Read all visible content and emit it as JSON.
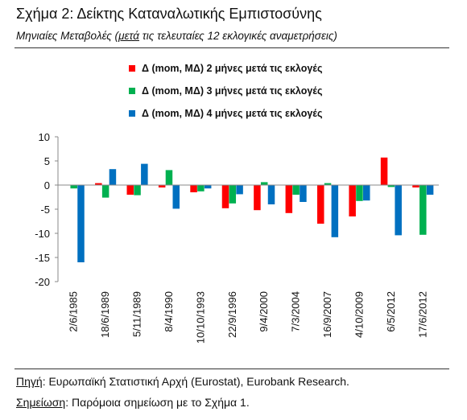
{
  "header": {
    "title": "Σχήμα 2: Δείκτης Καταναλωτικής Εμπιστοσύνης",
    "subtitle_prefix": "Μηνιαίες Μεταβολές (",
    "subtitle_emph": "μετά",
    "subtitle_suffix": " τις τελευταίες 12 εκλογικές αναμετρήσεις)"
  },
  "footer": {
    "source_label": "Πηγή",
    "source_text": ": Ευρωπαϊκή Στατιστική Αρχή (Eurostat), Eurobank Research.",
    "note_label": "Σημείωση",
    "note_text": ": Παρόμοια σημείωση με το Σχήμα 1."
  },
  "chart_data": {
    "type": "bar",
    "categories": [
      "2/6/1985",
      "18/6/1989",
      "5/11/1989",
      "8/4/1990",
      "10/10/1993",
      "22/9/1996",
      "9/4/2000",
      "7/3/2004",
      "16/9/2007",
      "4/10/2009",
      "6/5/2012",
      "17/6/2012"
    ],
    "series": [
      {
        "name": "Δ (mom, ΜΔ) 2 μήνες μετά τις εκλογές",
        "color": "#ff0000",
        "values": [
          0.0,
          0.4,
          -2.0,
          -0.5,
          -1.5,
          -4.8,
          -5.2,
          -5.8,
          -8.0,
          -6.5,
          5.7,
          -0.5
        ]
      },
      {
        "name": "Δ (mom, ΜΔ) 3 μήνες μετά τις εκλογές",
        "color": "#00b050",
        "values": [
          -0.7,
          -2.6,
          -2.1,
          3.1,
          -1.3,
          -3.8,
          0.6,
          -2.0,
          0.4,
          -3.3,
          -0.4,
          -10.3
        ]
      },
      {
        "name": "Δ (mom, ΜΔ) 4 μήνες μετά τις εκλογές",
        "color": "#0070c0",
        "values": [
          -16.0,
          3.3,
          4.4,
          -4.9,
          -0.7,
          -1.9,
          -4.0,
          -3.5,
          -10.8,
          -3.2,
          -10.4,
          -2.0
        ]
      }
    ],
    "ylim": [
      -20,
      10
    ],
    "yticks": [
      10,
      5,
      0,
      -5,
      -10,
      -15,
      -20
    ],
    "legend_position": "top",
    "grid": false
  }
}
